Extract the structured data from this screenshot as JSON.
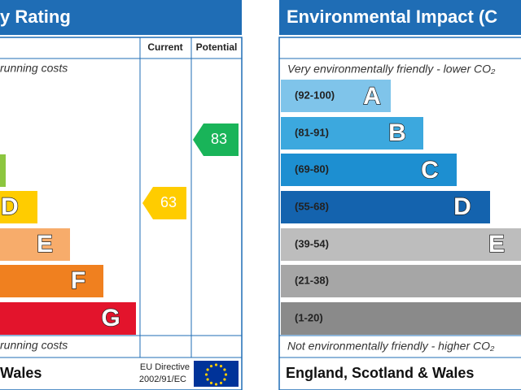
{
  "energy_panel": {
    "title": "y Rating",
    "columns": [
      "Current",
      "Potential"
    ],
    "top_note": "running costs",
    "bottom_note": "running costs",
    "bands": [
      {
        "letter": "D"
      },
      {
        "letter": "E"
      },
      {
        "letter": "F"
      },
      {
        "letter": "G"
      }
    ],
    "current": 63,
    "potential": 83,
    "footer": "Wales",
    "directive": [
      "EU Directive",
      "2002/91/EC"
    ]
  },
  "environment_panel": {
    "title": "Environmental Impact (C",
    "top_note": "Very environmentally friendly - lower CO₂",
    "bottom_note": "Not environmentally friendly - higher CO₂",
    "bands": [
      {
        "range": "(92-100)",
        "letter": "A"
      },
      {
        "range": "(81-91)",
        "letter": "B"
      },
      {
        "range": "(69-80)",
        "letter": "C"
      },
      {
        "range": "(55-68)",
        "letter": "D"
      },
      {
        "range": "(39-54)",
        "letter": "E"
      },
      {
        "range": "(21-38)"
      },
      {
        "range": "(1-20)"
      }
    ],
    "footer": "England, Scotland & Wales"
  }
}
